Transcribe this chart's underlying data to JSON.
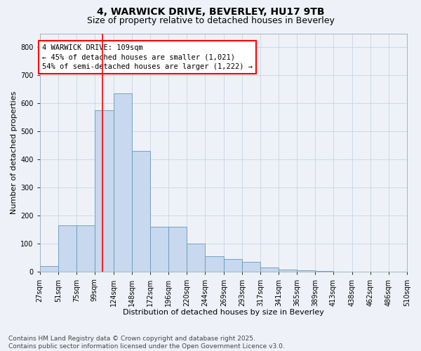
{
  "title1": "4, WARWICK DRIVE, BEVERLEY, HU17 9TB",
  "title2": "Size of property relative to detached houses in Beverley",
  "xlabel": "Distribution of detached houses by size in Beverley",
  "ylabel": "Number of detached properties",
  "bin_edges": [
    27,
    51,
    75,
    99,
    124,
    148,
    172,
    196,
    220,
    244,
    269,
    293,
    317,
    341,
    365,
    389,
    413,
    438,
    462,
    486,
    510
  ],
  "bar_heights": [
    20,
    165,
    165,
    575,
    635,
    430,
    160,
    160,
    100,
    55,
    45,
    35,
    15,
    8,
    5,
    4,
    2,
    1,
    1,
    1
  ],
  "bar_color": "#c8d8ee",
  "bar_edge_color": "#6699bb",
  "vline_x": 109,
  "vline_color": "red",
  "annotation_text": "4 WARWICK DRIVE: 109sqm\n← 45% of detached houses are smaller (1,021)\n54% of semi-detached houses are larger (1,222) →",
  "annotation_box_color": "white",
  "annotation_box_edge_color": "red",
  "ylim": [
    0,
    850
  ],
  "yticks": [
    0,
    100,
    200,
    300,
    400,
    500,
    600,
    700,
    800
  ],
  "grid_color": "#c8d4e4",
  "background_color": "#eef2f8",
  "footnote": "Contains HM Land Registry data © Crown copyright and database right 2025.\nContains public sector information licensed under the Open Government Licence v3.0.",
  "title1_fontsize": 10,
  "title2_fontsize": 9,
  "xlabel_fontsize": 8,
  "ylabel_fontsize": 8,
  "tick_fontsize": 7,
  "annotation_fontsize": 7.5,
  "footnote_fontsize": 6.5
}
